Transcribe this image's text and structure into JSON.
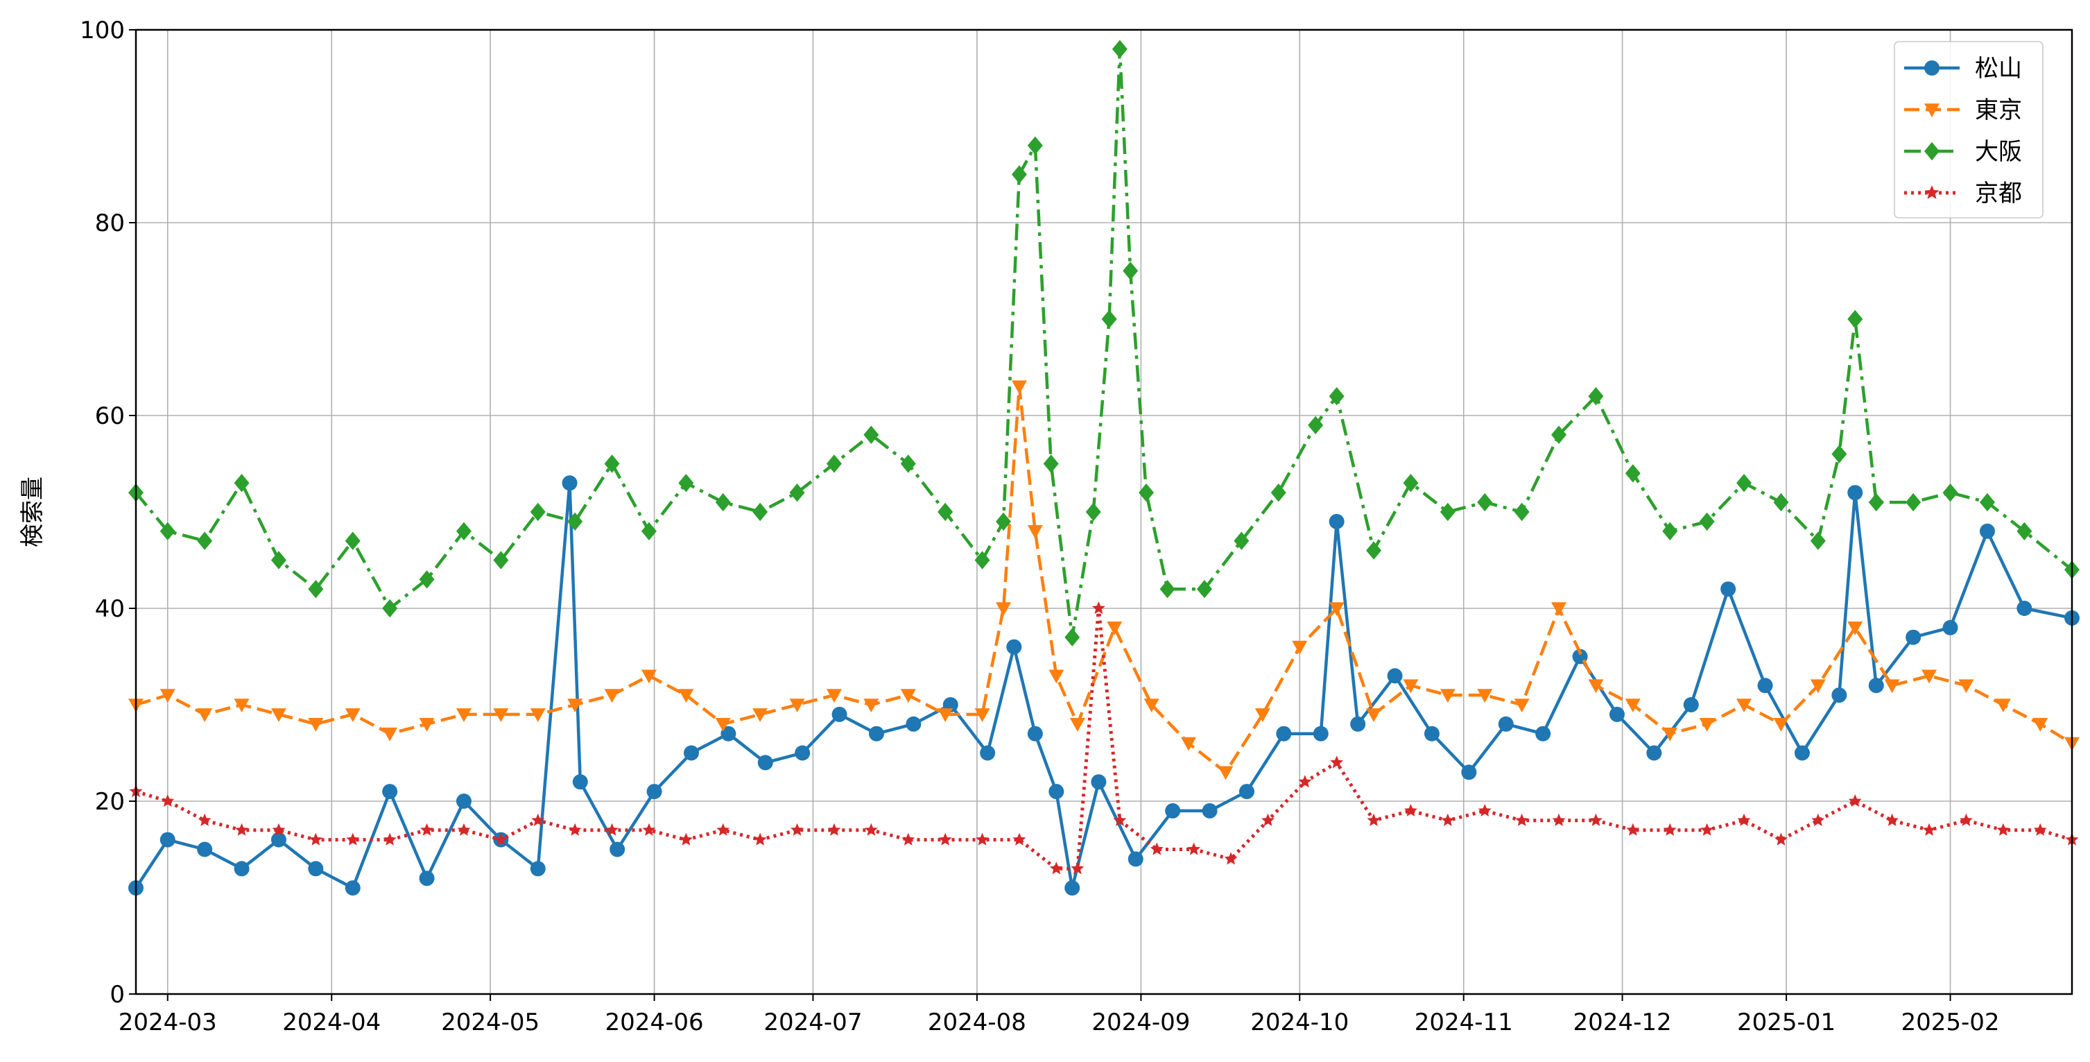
{
  "chart_data": {
    "type": "line",
    "ylabel": "検索量",
    "ylim": [
      0,
      100
    ],
    "yticks": [
      0,
      20,
      40,
      60,
      80,
      100
    ],
    "xlim": [
      "2024-02-24",
      "2025-02-24"
    ],
    "xticks": [
      "2024-03",
      "2024-04",
      "2024-05",
      "2024-06",
      "2024-07",
      "2024-08",
      "2024-09",
      "2024-10",
      "2024-11",
      "2024-12",
      "2025-01",
      "2025-02"
    ],
    "grid": true,
    "legend_position": "top-right",
    "series": [
      {
        "name": "松山",
        "color": "#1f77b4",
        "marker": "circle",
        "dash": "solid",
        "points": [
          [
            "2024-02-24",
            11
          ],
          [
            "2024-03-01",
            16
          ],
          [
            "2024-03-08",
            15
          ],
          [
            "2024-03-15",
            13
          ],
          [
            "2024-03-22",
            16
          ],
          [
            "2024-03-29",
            13
          ],
          [
            "2024-04-05",
            11
          ],
          [
            "2024-04-12",
            21
          ],
          [
            "2024-04-19",
            12
          ],
          [
            "2024-04-26",
            20
          ],
          [
            "2024-05-03",
            16
          ],
          [
            "2024-05-10",
            13
          ],
          [
            "2024-05-16",
            53
          ],
          [
            "2024-05-18",
            22
          ],
          [
            "2024-05-25",
            15
          ],
          [
            "2024-06-01",
            21
          ],
          [
            "2024-06-08",
            25
          ],
          [
            "2024-06-15",
            27
          ],
          [
            "2024-06-22",
            24
          ],
          [
            "2024-06-29",
            25
          ],
          [
            "2024-07-06",
            29
          ],
          [
            "2024-07-13",
            27
          ],
          [
            "2024-07-20",
            28
          ],
          [
            "2024-07-27",
            30
          ],
          [
            "2024-08-03",
            25
          ],
          [
            "2024-08-08",
            36
          ],
          [
            "2024-08-12",
            27
          ],
          [
            "2024-08-16",
            21
          ],
          [
            "2024-08-19",
            11
          ],
          [
            "2024-08-24",
            22
          ],
          [
            "2024-08-31",
            14
          ],
          [
            "2024-09-07",
            19
          ],
          [
            "2024-09-14",
            19
          ],
          [
            "2024-09-21",
            21
          ],
          [
            "2024-09-28",
            27
          ],
          [
            "2024-10-05",
            27
          ],
          [
            "2024-10-08",
            49
          ],
          [
            "2024-10-12",
            28
          ],
          [
            "2024-10-19",
            33
          ],
          [
            "2024-10-26",
            27
          ],
          [
            "2024-11-02",
            23
          ],
          [
            "2024-11-09",
            28
          ],
          [
            "2024-11-16",
            27
          ],
          [
            "2024-11-23",
            35
          ],
          [
            "2024-11-30",
            29
          ],
          [
            "2024-12-07",
            25
          ],
          [
            "2024-12-14",
            30
          ],
          [
            "2024-12-21",
            42
          ],
          [
            "2024-12-28",
            32
          ],
          [
            "2025-01-04",
            25
          ],
          [
            "2025-01-11",
            31
          ],
          [
            "2025-01-14",
            52
          ],
          [
            "2025-01-18",
            32
          ],
          [
            "2025-01-25",
            37
          ],
          [
            "2025-02-01",
            38
          ],
          [
            "2025-02-08",
            48
          ],
          [
            "2025-02-15",
            40
          ],
          [
            "2025-02-24",
            39
          ]
        ]
      },
      {
        "name": "東京",
        "color": "#ff7f0e",
        "marker": "triangle-down",
        "dash": "dashed",
        "points": [
          [
            "2024-02-24",
            30
          ],
          [
            "2024-03-01",
            31
          ],
          [
            "2024-03-08",
            29
          ],
          [
            "2024-03-15",
            30
          ],
          [
            "2024-03-22",
            29
          ],
          [
            "2024-03-29",
            28
          ],
          [
            "2024-04-05",
            29
          ],
          [
            "2024-04-12",
            27
          ],
          [
            "2024-04-19",
            28
          ],
          [
            "2024-04-26",
            29
          ],
          [
            "2024-05-03",
            29
          ],
          [
            "2024-05-10",
            29
          ],
          [
            "2024-05-17",
            30
          ],
          [
            "2024-05-24",
            31
          ],
          [
            "2024-05-31",
            33
          ],
          [
            "2024-06-07",
            31
          ],
          [
            "2024-06-14",
            28
          ],
          [
            "2024-06-21",
            29
          ],
          [
            "2024-06-28",
            30
          ],
          [
            "2024-07-05",
            31
          ],
          [
            "2024-07-12",
            30
          ],
          [
            "2024-07-19",
            31
          ],
          [
            "2024-07-26",
            29
          ],
          [
            "2024-08-02",
            29
          ],
          [
            "2024-08-06",
            40
          ],
          [
            "2024-08-09",
            63
          ],
          [
            "2024-08-12",
            48
          ],
          [
            "2024-08-16",
            33
          ],
          [
            "2024-08-20",
            28
          ],
          [
            "2024-08-27",
            38
          ],
          [
            "2024-09-03",
            30
          ],
          [
            "2024-09-10",
            26
          ],
          [
            "2024-09-17",
            23
          ],
          [
            "2024-09-24",
            29
          ],
          [
            "2024-10-01",
            36
          ],
          [
            "2024-10-08",
            40
          ],
          [
            "2024-10-15",
            29
          ],
          [
            "2024-10-22",
            32
          ],
          [
            "2024-10-29",
            31
          ],
          [
            "2024-11-05",
            31
          ],
          [
            "2024-11-12",
            30
          ],
          [
            "2024-11-19",
            40
          ],
          [
            "2024-11-26",
            32
          ],
          [
            "2024-12-03",
            30
          ],
          [
            "2024-12-10",
            27
          ],
          [
            "2024-12-17",
            28
          ],
          [
            "2024-12-24",
            30
          ],
          [
            "2024-12-31",
            28
          ],
          [
            "2025-01-07",
            32
          ],
          [
            "2025-01-14",
            38
          ],
          [
            "2025-01-21",
            32
          ],
          [
            "2025-01-28",
            33
          ],
          [
            "2025-02-04",
            32
          ],
          [
            "2025-02-11",
            30
          ],
          [
            "2025-02-18",
            28
          ],
          [
            "2025-02-24",
            26
          ]
        ]
      },
      {
        "name": "大阪",
        "color": "#2ca02c",
        "marker": "diamond",
        "dash": "dashdot",
        "points": [
          [
            "2024-02-24",
            52
          ],
          [
            "2024-03-01",
            48
          ],
          [
            "2024-03-08",
            47
          ],
          [
            "2024-03-15",
            53
          ],
          [
            "2024-03-22",
            45
          ],
          [
            "2024-03-29",
            42
          ],
          [
            "2024-04-05",
            47
          ],
          [
            "2024-04-12",
            40
          ],
          [
            "2024-04-19",
            43
          ],
          [
            "2024-04-26",
            48
          ],
          [
            "2024-05-03",
            45
          ],
          [
            "2024-05-10",
            50
          ],
          [
            "2024-05-17",
            49
          ],
          [
            "2024-05-24",
            55
          ],
          [
            "2024-05-31",
            48
          ],
          [
            "2024-06-07",
            53
          ],
          [
            "2024-06-14",
            51
          ],
          [
            "2024-06-21",
            50
          ],
          [
            "2024-06-28",
            52
          ],
          [
            "2024-07-05",
            55
          ],
          [
            "2024-07-12",
            58
          ],
          [
            "2024-07-19",
            55
          ],
          [
            "2024-07-26",
            50
          ],
          [
            "2024-08-02",
            45
          ],
          [
            "2024-08-06",
            49
          ],
          [
            "2024-08-09",
            85
          ],
          [
            "2024-08-12",
            88
          ],
          [
            "2024-08-15",
            55
          ],
          [
            "2024-08-19",
            37
          ],
          [
            "2024-08-23",
            50
          ],
          [
            "2024-08-26",
            70
          ],
          [
            "2024-08-28",
            98
          ],
          [
            "2024-08-30",
            75
          ],
          [
            "2024-09-02",
            52
          ],
          [
            "2024-09-06",
            42
          ],
          [
            "2024-09-13",
            42
          ],
          [
            "2024-09-20",
            47
          ],
          [
            "2024-09-27",
            52
          ],
          [
            "2024-10-04",
            59
          ],
          [
            "2024-10-08",
            62
          ],
          [
            "2024-10-15",
            46
          ],
          [
            "2024-10-22",
            53
          ],
          [
            "2024-10-29",
            50
          ],
          [
            "2024-11-05",
            51
          ],
          [
            "2024-11-12",
            50
          ],
          [
            "2024-11-19",
            58
          ],
          [
            "2024-11-26",
            62
          ],
          [
            "2024-12-03",
            54
          ],
          [
            "2024-12-10",
            48
          ],
          [
            "2024-12-17",
            49
          ],
          [
            "2024-12-24",
            53
          ],
          [
            "2024-12-31",
            51
          ],
          [
            "2025-01-07",
            47
          ],
          [
            "2025-01-11",
            56
          ],
          [
            "2025-01-14",
            70
          ],
          [
            "2025-01-18",
            51
          ],
          [
            "2025-01-25",
            51
          ],
          [
            "2025-02-01",
            52
          ],
          [
            "2025-02-08",
            51
          ],
          [
            "2025-02-15",
            48
          ],
          [
            "2025-02-24",
            44
          ]
        ]
      },
      {
        "name": "京都",
        "color": "#d62728",
        "marker": "star",
        "dash": "dotted",
        "points": [
          [
            "2024-02-24",
            21
          ],
          [
            "2024-03-01",
            20
          ],
          [
            "2024-03-08",
            18
          ],
          [
            "2024-03-15",
            17
          ],
          [
            "2024-03-22",
            17
          ],
          [
            "2024-03-29",
            16
          ],
          [
            "2024-04-05",
            16
          ],
          [
            "2024-04-12",
            16
          ],
          [
            "2024-04-19",
            17
          ],
          [
            "2024-04-26",
            17
          ],
          [
            "2024-05-03",
            16
          ],
          [
            "2024-05-10",
            18
          ],
          [
            "2024-05-17",
            17
          ],
          [
            "2024-05-24",
            17
          ],
          [
            "2024-05-31",
            17
          ],
          [
            "2024-06-07",
            16
          ],
          [
            "2024-06-14",
            17
          ],
          [
            "2024-06-21",
            16
          ],
          [
            "2024-06-28",
            17
          ],
          [
            "2024-07-05",
            17
          ],
          [
            "2024-07-12",
            17
          ],
          [
            "2024-07-19",
            16
          ],
          [
            "2024-07-26",
            16
          ],
          [
            "2024-08-02",
            16
          ],
          [
            "2024-08-09",
            16
          ],
          [
            "2024-08-16",
            13
          ],
          [
            "2024-08-20",
            13
          ],
          [
            "2024-08-24",
            40
          ],
          [
            "2024-08-28",
            18
          ],
          [
            "2024-09-04",
            15
          ],
          [
            "2024-09-11",
            15
          ],
          [
            "2024-09-18",
            14
          ],
          [
            "2024-09-25",
            18
          ],
          [
            "2024-10-02",
            22
          ],
          [
            "2024-10-08",
            24
          ],
          [
            "2024-10-15",
            18
          ],
          [
            "2024-10-22",
            19
          ],
          [
            "2024-10-29",
            18
          ],
          [
            "2024-11-05",
            19
          ],
          [
            "2024-11-12",
            18
          ],
          [
            "2024-11-19",
            18
          ],
          [
            "2024-11-26",
            18
          ],
          [
            "2024-12-03",
            17
          ],
          [
            "2024-12-10",
            17
          ],
          [
            "2024-12-17",
            17
          ],
          [
            "2024-12-24",
            18
          ],
          [
            "2024-12-31",
            16
          ],
          [
            "2025-01-07",
            18
          ],
          [
            "2025-01-14",
            20
          ],
          [
            "2025-01-21",
            18
          ],
          [
            "2025-01-28",
            17
          ],
          [
            "2025-02-04",
            18
          ],
          [
            "2025-02-11",
            17
          ],
          [
            "2025-02-18",
            17
          ],
          [
            "2025-02-24",
            16
          ]
        ]
      }
    ]
  }
}
